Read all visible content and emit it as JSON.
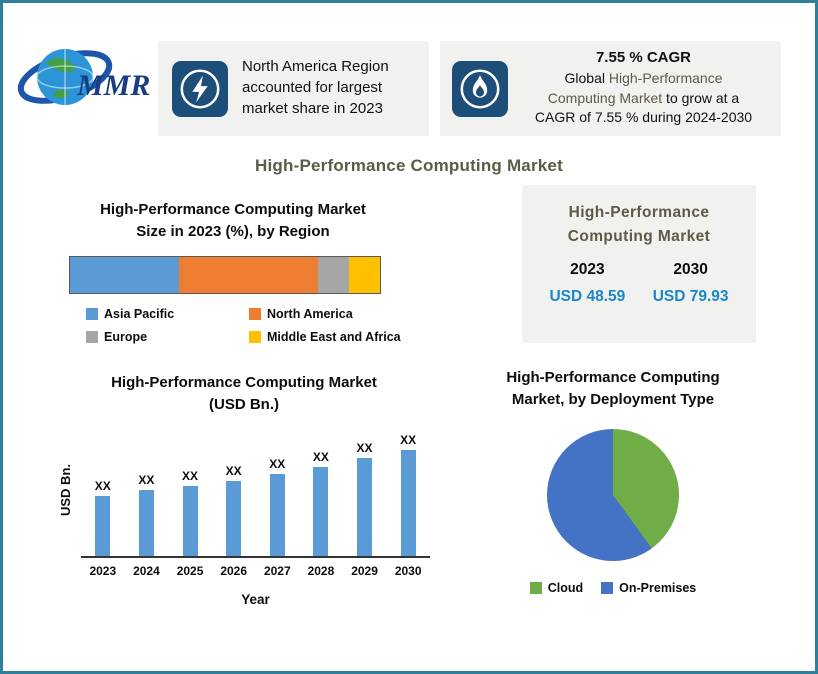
{
  "page": {
    "main_title": "High-Performance Computing Market",
    "colors": {
      "page_border": "#2e8099",
      "card_background": "#f1f1f0",
      "icon_badge": "#1d4e79",
      "heading_olive": "#5e5a45",
      "value_blue": "#1a87c9"
    }
  },
  "logo": {
    "text": "MMR"
  },
  "cards": {
    "market_share": {
      "icon": "lightning-icon",
      "lines": [
        "North America Region",
        "accounted for largest",
        "market share in 2023"
      ]
    },
    "cagr": {
      "icon": "flame-icon",
      "heading": "7.55 % CAGR",
      "line1_black": "Global ",
      "line1_brown": "High-Performance",
      "line2_brown": "Computing Market",
      "line2_black": " to grow at a",
      "line3": "CAGR of 7.55 % during 2024-2030"
    }
  },
  "market_size_card": {
    "title": "High-Performance Computing Market",
    "periods": [
      {
        "year": "2023",
        "value": "USD 48.59"
      },
      {
        "year": "2030",
        "value": "USD 79.93"
      }
    ]
  },
  "chart_data": [
    {
      "type": "stacked-bar",
      "title": "High-Performance Computing Market Size in 2023 (%), by Region",
      "title_lines": [
        "High-Performance Computing Market",
        "Size in 2023 (%), by Region"
      ],
      "unit": "%",
      "legend_position": "bottom",
      "series": [
        {
          "name": "Asia Pacific",
          "value": 35,
          "color": "#5b9bd5"
        },
        {
          "name": "North America",
          "value": 45,
          "color": "#ed7d31"
        },
        {
          "name": "Europe",
          "value": 10,
          "color": "#a6a6a6"
        },
        {
          "name": "Middle East and Africa",
          "value": 10,
          "color": "#ffc000"
        }
      ]
    },
    {
      "type": "bar",
      "title": "High-Performance Computing Market (USD Bn.)",
      "title_lines": [
        "High-Performance Computing Market",
        "(USD Bn.)"
      ],
      "categories": [
        "2023",
        "2024",
        "2025",
        "2026",
        "2027",
        "2028",
        "2029",
        "2030"
      ],
      "bar_label": "XX",
      "values_relative": [
        57,
        62,
        66,
        71,
        77,
        84,
        92,
        100
      ],
      "xlabel": "Year",
      "ylabel": "USD Bn.",
      "bar_color": "#5b9bd5"
    },
    {
      "type": "pie",
      "title": "High-Performance Computing Market, by Deployment Type",
      "legend_position": "bottom",
      "slices": [
        {
          "name": "Cloud",
          "value": 40,
          "color": "#70ad47"
        },
        {
          "name": "On-Premises",
          "value": 60,
          "color": "#4472c4"
        }
      ]
    }
  ]
}
